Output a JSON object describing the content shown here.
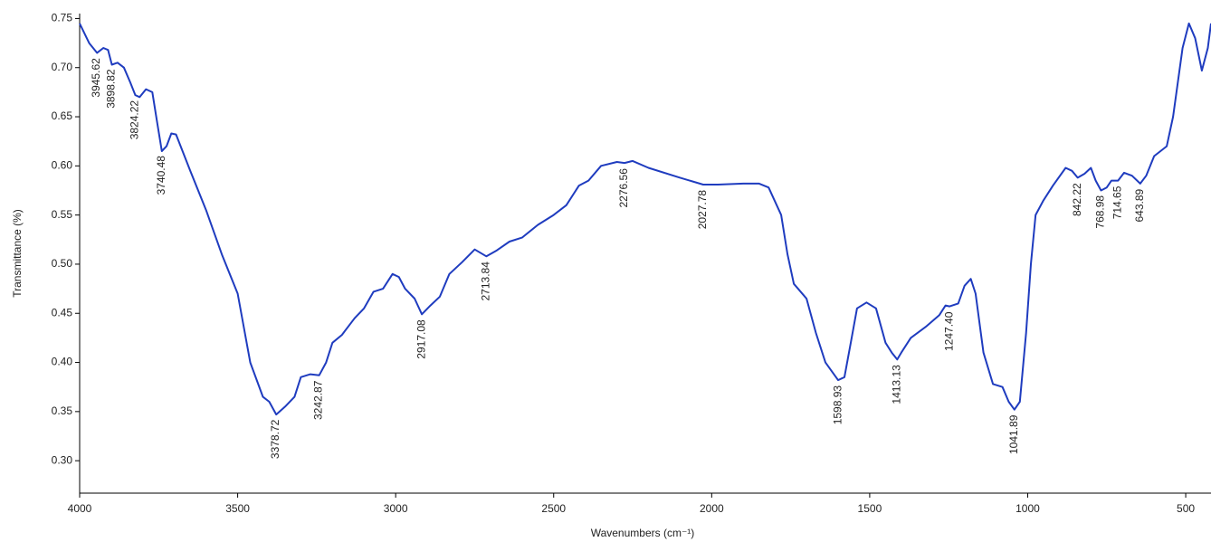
{
  "chart_data": {
    "type": "line",
    "xlabel": "Wavenumbers (cm⁻¹)",
    "ylabel": "Transmittance (%)",
    "xlim": [
      4000,
      420
    ],
    "xreversed": true,
    "xticks": [
      4000,
      3500,
      3000,
      2500,
      2000,
      1500,
      1000,
      500
    ],
    "ylim": [
      0.267,
      0.755
    ],
    "yticks": [
      {
        "value": 0.3,
        "label": "0.30"
      },
      {
        "value": 0.35,
        "label": "0.35"
      },
      {
        "value": 0.4,
        "label": "0.40"
      },
      {
        "value": 0.45,
        "label": "0.45"
      },
      {
        "value": 0.5,
        "label": "0.50"
      },
      {
        "value": 0.55,
        "label": "0.55"
      },
      {
        "value": 0.6,
        "label": "0.60"
      },
      {
        "value": 0.65,
        "label": "0.65"
      },
      {
        "value": 0.7,
        "label": "0.70"
      },
      {
        "value": 0.75,
        "label": "0.75"
      }
    ],
    "x": [
      4000,
      3970,
      3945,
      3925,
      3910,
      3898,
      3880,
      3860,
      3840,
      3824,
      3810,
      3790,
      3770,
      3755,
      3740,
      3725,
      3710,
      3695,
      3650,
      3600,
      3550,
      3500,
      3460,
      3420,
      3400,
      3378,
      3350,
      3320,
      3300,
      3270,
      3242,
      3220,
      3200,
      3170,
      3130,
      3100,
      3070,
      3040,
      3010,
      2990,
      2970,
      2940,
      2917,
      2890,
      2860,
      2830,
      2790,
      2750,
      2713,
      2680,
      2640,
      2600,
      2550,
      2500,
      2460,
      2420,
      2390,
      2350,
      2300,
      2276,
      2250,
      2200,
      2100,
      2027,
      1980,
      1900,
      1850,
      1820,
      1780,
      1760,
      1740,
      1700,
      1670,
      1640,
      1600,
      1580,
      1560,
      1540,
      1510,
      1480,
      1450,
      1430,
      1413,
      1400,
      1370,
      1320,
      1280,
      1260,
      1247,
      1220,
      1200,
      1180,
      1165,
      1140,
      1110,
      1080,
      1060,
      1042,
      1025,
      1005,
      990,
      975,
      950,
      920,
      880,
      860,
      842,
      820,
      800,
      785,
      768,
      750,
      735,
      714,
      695,
      670,
      644,
      625,
      600,
      560,
      540,
      510,
      490,
      470,
      449,
      430,
      420
    ],
    "series": [
      {
        "color": "#1f3cbf",
        "values": [
          0.745,
          0.725,
          0.715,
          0.72,
          0.718,
          0.703,
          0.705,
          0.7,
          0.685,
          0.672,
          0.67,
          0.678,
          0.675,
          0.645,
          0.615,
          0.62,
          0.633,
          0.632,
          0.595,
          0.555,
          0.51,
          0.47,
          0.4,
          0.365,
          0.36,
          0.347,
          0.355,
          0.365,
          0.385,
          0.388,
          0.387,
          0.4,
          0.42,
          0.428,
          0.445,
          0.455,
          0.472,
          0.475,
          0.49,
          0.487,
          0.475,
          0.465,
          0.449,
          0.458,
          0.467,
          0.49,
          0.502,
          0.515,
          0.508,
          0.514,
          0.523,
          0.527,
          0.54,
          0.55,
          0.56,
          0.58,
          0.585,
          0.6,
          0.604,
          0.603,
          0.605,
          0.598,
          0.588,
          0.581,
          0.581,
          0.582,
          0.582,
          0.578,
          0.55,
          0.51,
          0.48,
          0.465,
          0.43,
          0.4,
          0.382,
          0.385,
          0.42,
          0.455,
          0.461,
          0.455,
          0.42,
          0.41,
          0.403,
          0.41,
          0.425,
          0.437,
          0.448,
          0.458,
          0.457,
          0.46,
          0.478,
          0.485,
          0.47,
          0.41,
          0.378,
          0.375,
          0.36,
          0.352,
          0.36,
          0.43,
          0.5,
          0.55,
          0.565,
          0.58,
          0.598,
          0.595,
          0.588,
          0.592,
          0.598,
          0.585,
          0.575,
          0.578,
          0.585,
          0.585,
          0.593,
          0.59,
          0.582,
          0.59,
          0.61,
          0.62,
          0.65,
          0.72,
          0.745,
          0.73,
          0.697,
          0.72,
          0.745
        ]
      }
    ],
    "annotations": [
      {
        "x": 3945.62,
        "label": "3945.62"
      },
      {
        "x": 3898.82,
        "label": "3898.82"
      },
      {
        "x": 3824.22,
        "label": "3824.22"
      },
      {
        "x": 3740.48,
        "label": "3740.48"
      },
      {
        "x": 3378.72,
        "label": "3378.72"
      },
      {
        "x": 3242.87,
        "label": "3242.87"
      },
      {
        "x": 2917.08,
        "label": "2917.08"
      },
      {
        "x": 2713.84,
        "label": "2713.84"
      },
      {
        "x": 2276.56,
        "label": "2276.56"
      },
      {
        "x": 2027.78,
        "label": "2027.78"
      },
      {
        "x": 1598.93,
        "label": "1598.93"
      },
      {
        "x": 1413.13,
        "label": "1413.13"
      },
      {
        "x": 1247.4,
        "label": "1247.40"
      },
      {
        "x": 1041.89,
        "label": "1041.89"
      },
      {
        "x": 842.22,
        "label": "842.22"
      },
      {
        "x": 768.98,
        "label": "768.98"
      },
      {
        "x": 714.65,
        "label": "714.65"
      },
      {
        "x": 643.89,
        "label": "643.89"
      }
    ]
  }
}
